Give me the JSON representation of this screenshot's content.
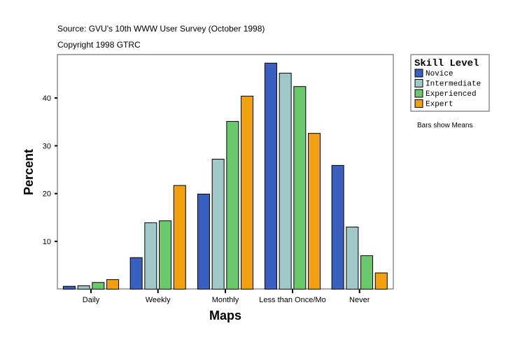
{
  "chart_data": {
    "type": "bar",
    "title": "Source: GVU's 10th WWW User Survey (October 1998)",
    "subtitle": "Copyright 1998 GTRC",
    "xlabel": "Maps",
    "ylabel": "Percent",
    "ylim": [
      0,
      49
    ],
    "yticks": [
      10,
      20,
      30,
      40
    ],
    "grid": false,
    "legend_title": "Skill Level",
    "legend_position": "right",
    "note": "Bars show Means",
    "categories": [
      "Daily",
      "Weekly",
      "Monthly",
      "Less than Once/Mo",
      "Never"
    ],
    "series": [
      {
        "name": "Novice",
        "color": "#3a5fbf",
        "values": [
          0.6,
          6.6,
          19.9,
          47.3,
          25.9
        ]
      },
      {
        "name": "Intermediate",
        "color": "#a0c8c8",
        "values": [
          0.7,
          13.9,
          27.2,
          45.2,
          13.0
        ]
      },
      {
        "name": "Experienced",
        "color": "#6cc86c",
        "values": [
          1.4,
          14.3,
          35.1,
          42.4,
          7.0
        ]
      },
      {
        "name": "Expert",
        "color": "#f0a010",
        "values": [
          2.0,
          21.7,
          40.4,
          32.6,
          3.4
        ]
      }
    ]
  }
}
